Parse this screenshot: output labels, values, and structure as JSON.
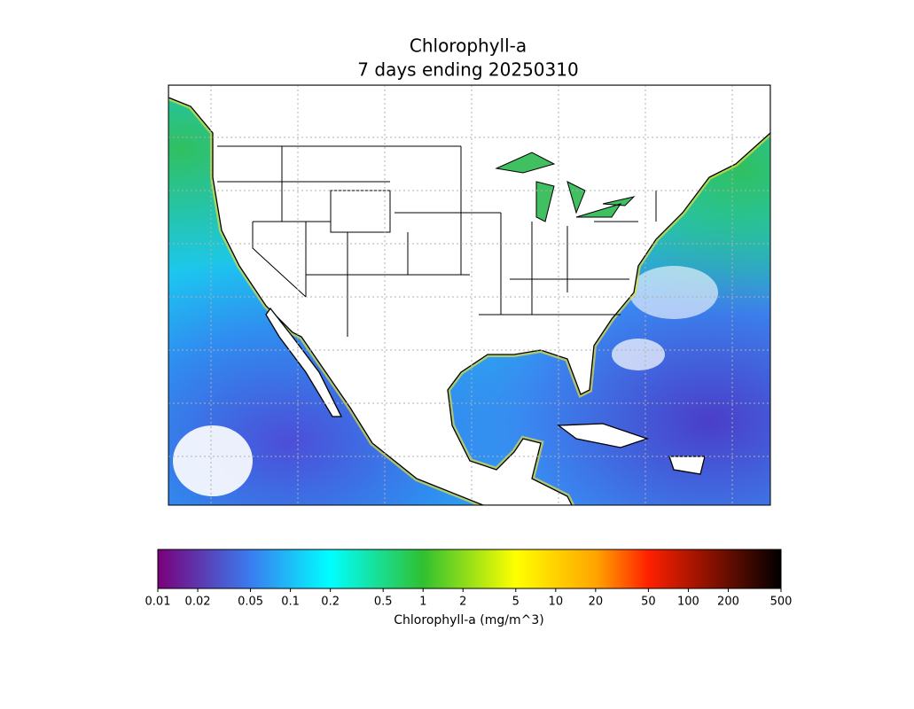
{
  "chart_data": {
    "type": "colormap-map",
    "title": "Chlorophyll-a",
    "subtitle": "7 days ending 20250310",
    "colorbar_label": "Chlorophyll-a (mg/m^3)",
    "log_scale": true,
    "clim": [
      0.01,
      500
    ],
    "cticks": [
      0.01,
      0.02,
      0.05,
      0.1,
      0.2,
      0.5,
      1,
      2,
      5,
      10,
      20,
      50,
      100,
      200,
      500
    ],
    "colormap": [
      {
        "value": 0.01,
        "color": "#7a007a"
      },
      {
        "value": 0.05,
        "color": "#3a7cf0"
      },
      {
        "value": 0.2,
        "color": "#00ffff"
      },
      {
        "value": 1,
        "color": "#30c030"
      },
      {
        "value": 5,
        "color": "#ffff00"
      },
      {
        "value": 20,
        "color": "#ffa500"
      },
      {
        "value": 50,
        "color": "#ff2000"
      },
      {
        "value": 500,
        "color": "#000000"
      }
    ]
  }
}
